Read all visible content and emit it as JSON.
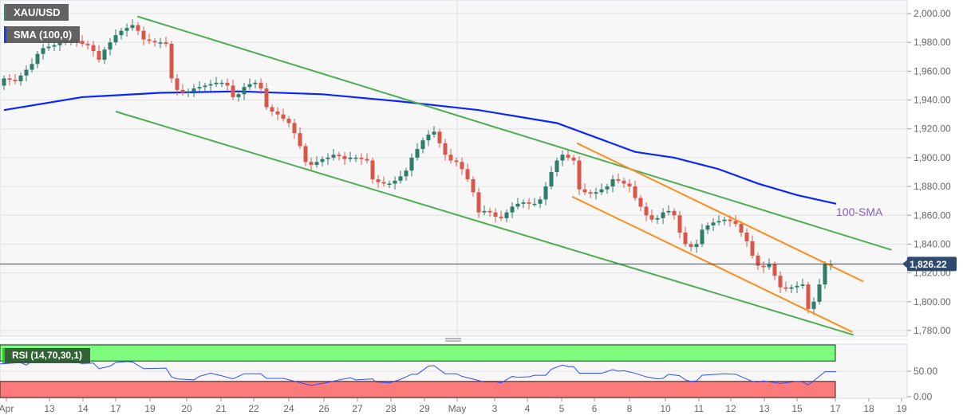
{
  "legend": {
    "instrument": "XAU/USD",
    "sma": "SMA (100,0)",
    "rsi": "RSI (14,70,30,1)"
  },
  "colors": {
    "up": "#2e7d6b",
    "down": "#d9574a",
    "channel_outer": "#4caf50",
    "channel_inner": "#ff8c1a",
    "sma": "#0a26ff",
    "rsi_line": "#2f4cff",
    "rsi_overbought": "#7dfc7d",
    "rsi_oversold": "#fd7a7a",
    "price_tag": "#2f4a6e"
  },
  "chart_data": {
    "type": "candlestick",
    "title": "",
    "instrument": "XAU/USD",
    "y_axis": {
      "ticks": [
        "2,000.00",
        "1,980.00",
        "1,960.00",
        "1,940.00",
        "1,920.00",
        "1,900.00",
        "1,880.00",
        "1,860.00",
        "1,840.00",
        "1,820.00",
        "1,800.00",
        "1,780.00"
      ],
      "range": [
        1778,
        2008
      ]
    },
    "x_axis": {
      "ticks": [
        "Apr",
        "13",
        "14",
        "17",
        "19",
        "20",
        "21",
        "22",
        "24",
        "26",
        "27",
        "28",
        "29",
        "May",
        "3",
        "4",
        "5",
        "6",
        "8",
        "10",
        "11",
        "12",
        "13",
        "15",
        "17",
        "18",
        "19"
      ]
    },
    "closes": [
      1955,
      1954,
      1953,
      1957,
      1961,
      1965,
      1972,
      1976,
      1977,
      1978,
      1980,
      1981,
      1982,
      1981,
      1979,
      1978,
      1974,
      1968,
      1975,
      1980,
      1985,
      1988,
      1990,
      1992,
      1988,
      1982,
      1981,
      1980,
      1980,
      1979,
      1955,
      1947,
      1945,
      1946,
      1948,
      1949,
      1950,
      1951,
      1952,
      1952,
      1950,
      1942,
      1944,
      1949,
      1951,
      1952,
      1948,
      1935,
      1932,
      1930,
      1927,
      1924,
      1917,
      1908,
      1897,
      1895,
      1897,
      1899,
      1900,
      1902,
      1901,
      1899,
      1900,
      1900,
      1899,
      1898,
      1885,
      1883,
      1882,
      1882,
      1884,
      1887,
      1891,
      1900,
      1906,
      1912,
      1916,
      1918,
      1910,
      1902,
      1898,
      1897,
      1892,
      1885,
      1876,
      1862,
      1863,
      1862,
      1859,
      1858,
      1862,
      1866,
      1868,
      1869,
      1868,
      1868,
      1871,
      1880,
      1890,
      1898,
      1902,
      1900,
      1898,
      1878,
      1876,
      1875,
      1876,
      1878,
      1880,
      1885,
      1884,
      1882,
      1880,
      1872,
      1866,
      1860,
      1857,
      1858,
      1862,
      1863,
      1860,
      1848,
      1840,
      1838,
      1840,
      1850,
      1853,
      1855,
      1856,
      1857,
      1856,
      1854,
      1848,
      1842,
      1832,
      1825,
      1824,
      1826,
      1818,
      1810,
      1809,
      1810,
      1811,
      1812,
      1795,
      1800,
      1812,
      1826,
      1826
    ],
    "open_first": 1950,
    "last_price": "1,826.22",
    "last_price_value": 1826.22,
    "sma_100": {
      "label": "100-SMA",
      "points": [
        [
          0,
          1933
        ],
        [
          14,
          1942
        ],
        [
          28,
          1945
        ],
        [
          42,
          1946
        ],
        [
          57,
          1944
        ],
        [
          71,
          1939
        ],
        [
          85,
          1933
        ],
        [
          99,
          1924
        ],
        [
          106,
          1914
        ],
        [
          113,
          1904
        ],
        [
          120,
          1900
        ],
        [
          128,
          1892
        ],
        [
          135,
          1882
        ],
        [
          142,
          1874
        ],
        [
          149,
          1868
        ]
      ]
    },
    "trendlines": [
      {
        "kind": "channel_outer",
        "points": [
          [
            23.9,
            1998
          ],
          [
            158.9,
            1836
          ]
        ]
      },
      {
        "kind": "channel_outer",
        "points": [
          [
            20,
            1932
          ],
          [
            152.1,
            1777
          ]
        ]
      },
      {
        "kind": "channel_inner",
        "points": [
          [
            102.6,
            1910
          ],
          [
            153.9,
            1814
          ]
        ]
      },
      {
        "kind": "channel_inner",
        "points": [
          [
            101.7,
            1873
          ],
          [
            151.9,
            1779
          ]
        ]
      }
    ],
    "rsi": {
      "params": "14,70,30,1",
      "overbought": 70,
      "oversold": 30,
      "y_ticks": [
        "50.00",
        "0.00"
      ],
      "points": [
        [
          -1,
          64
        ],
        [
          3,
          67
        ],
        [
          4,
          62
        ],
        [
          5,
          70
        ],
        [
          7,
          67
        ],
        [
          9,
          71
        ],
        [
          11,
          72
        ],
        [
          14,
          65
        ],
        [
          16,
          66
        ],
        [
          17,
          55
        ],
        [
          19,
          60
        ],
        [
          20,
          67
        ],
        [
          22,
          69
        ],
        [
          23,
          68
        ],
        [
          25,
          55
        ],
        [
          29,
          56
        ],
        [
          30,
          39
        ],
        [
          31,
          35
        ],
        [
          34,
          33
        ],
        [
          35,
          40
        ],
        [
          37,
          46
        ],
        [
          39,
          41
        ],
        [
          41,
          35
        ],
        [
          43,
          45
        ],
        [
          46,
          45
        ],
        [
          47,
          36
        ],
        [
          49,
          36
        ],
        [
          50,
          36
        ],
        [
          55,
          22
        ],
        [
          58,
          28
        ],
        [
          60,
          33
        ],
        [
          62,
          37
        ],
        [
          63,
          33
        ],
        [
          66,
          35
        ],
        [
          66.5,
          29
        ],
        [
          69,
          27
        ],
        [
          71,
          34
        ],
        [
          73,
          44
        ],
        [
          74,
          44
        ],
        [
          76,
          60
        ],
        [
          77,
          61
        ],
        [
          79,
          45
        ],
        [
          81,
          45
        ],
        [
          82,
          40
        ],
        [
          86,
          29
        ],
        [
          88,
          29
        ],
        [
          89,
          27
        ],
        [
          91,
          40
        ],
        [
          92,
          38
        ],
        [
          94,
          39
        ],
        [
          95,
          42
        ],
        [
          97,
          42
        ],
        [
          98,
          54
        ],
        [
          100,
          62
        ],
        [
          101,
          59
        ],
        [
          102,
          59
        ],
        [
          103,
          46
        ],
        [
          107,
          46
        ],
        [
          109,
          53
        ],
        [
          110,
          50
        ],
        [
          111,
          51
        ],
        [
          113,
          46
        ],
        [
          115,
          39
        ],
        [
          117,
          35
        ],
        [
          118,
          36
        ],
        [
          119,
          44
        ],
        [
          121,
          41
        ],
        [
          122,
          33
        ],
        [
          123,
          30
        ],
        [
          124,
          31
        ],
        [
          125,
          42
        ],
        [
          129,
          45
        ],
        [
          131,
          44
        ],
        [
          134,
          30
        ],
        [
          135,
          29
        ],
        [
          136,
          31
        ],
        [
          137,
          29
        ],
        [
          139,
          26
        ],
        [
          142,
          30
        ],
        [
          143,
          29
        ],
        [
          144,
          23
        ],
        [
          146,
          40
        ],
        [
          147,
          49
        ],
        [
          149,
          49
        ]
      ]
    }
  }
}
